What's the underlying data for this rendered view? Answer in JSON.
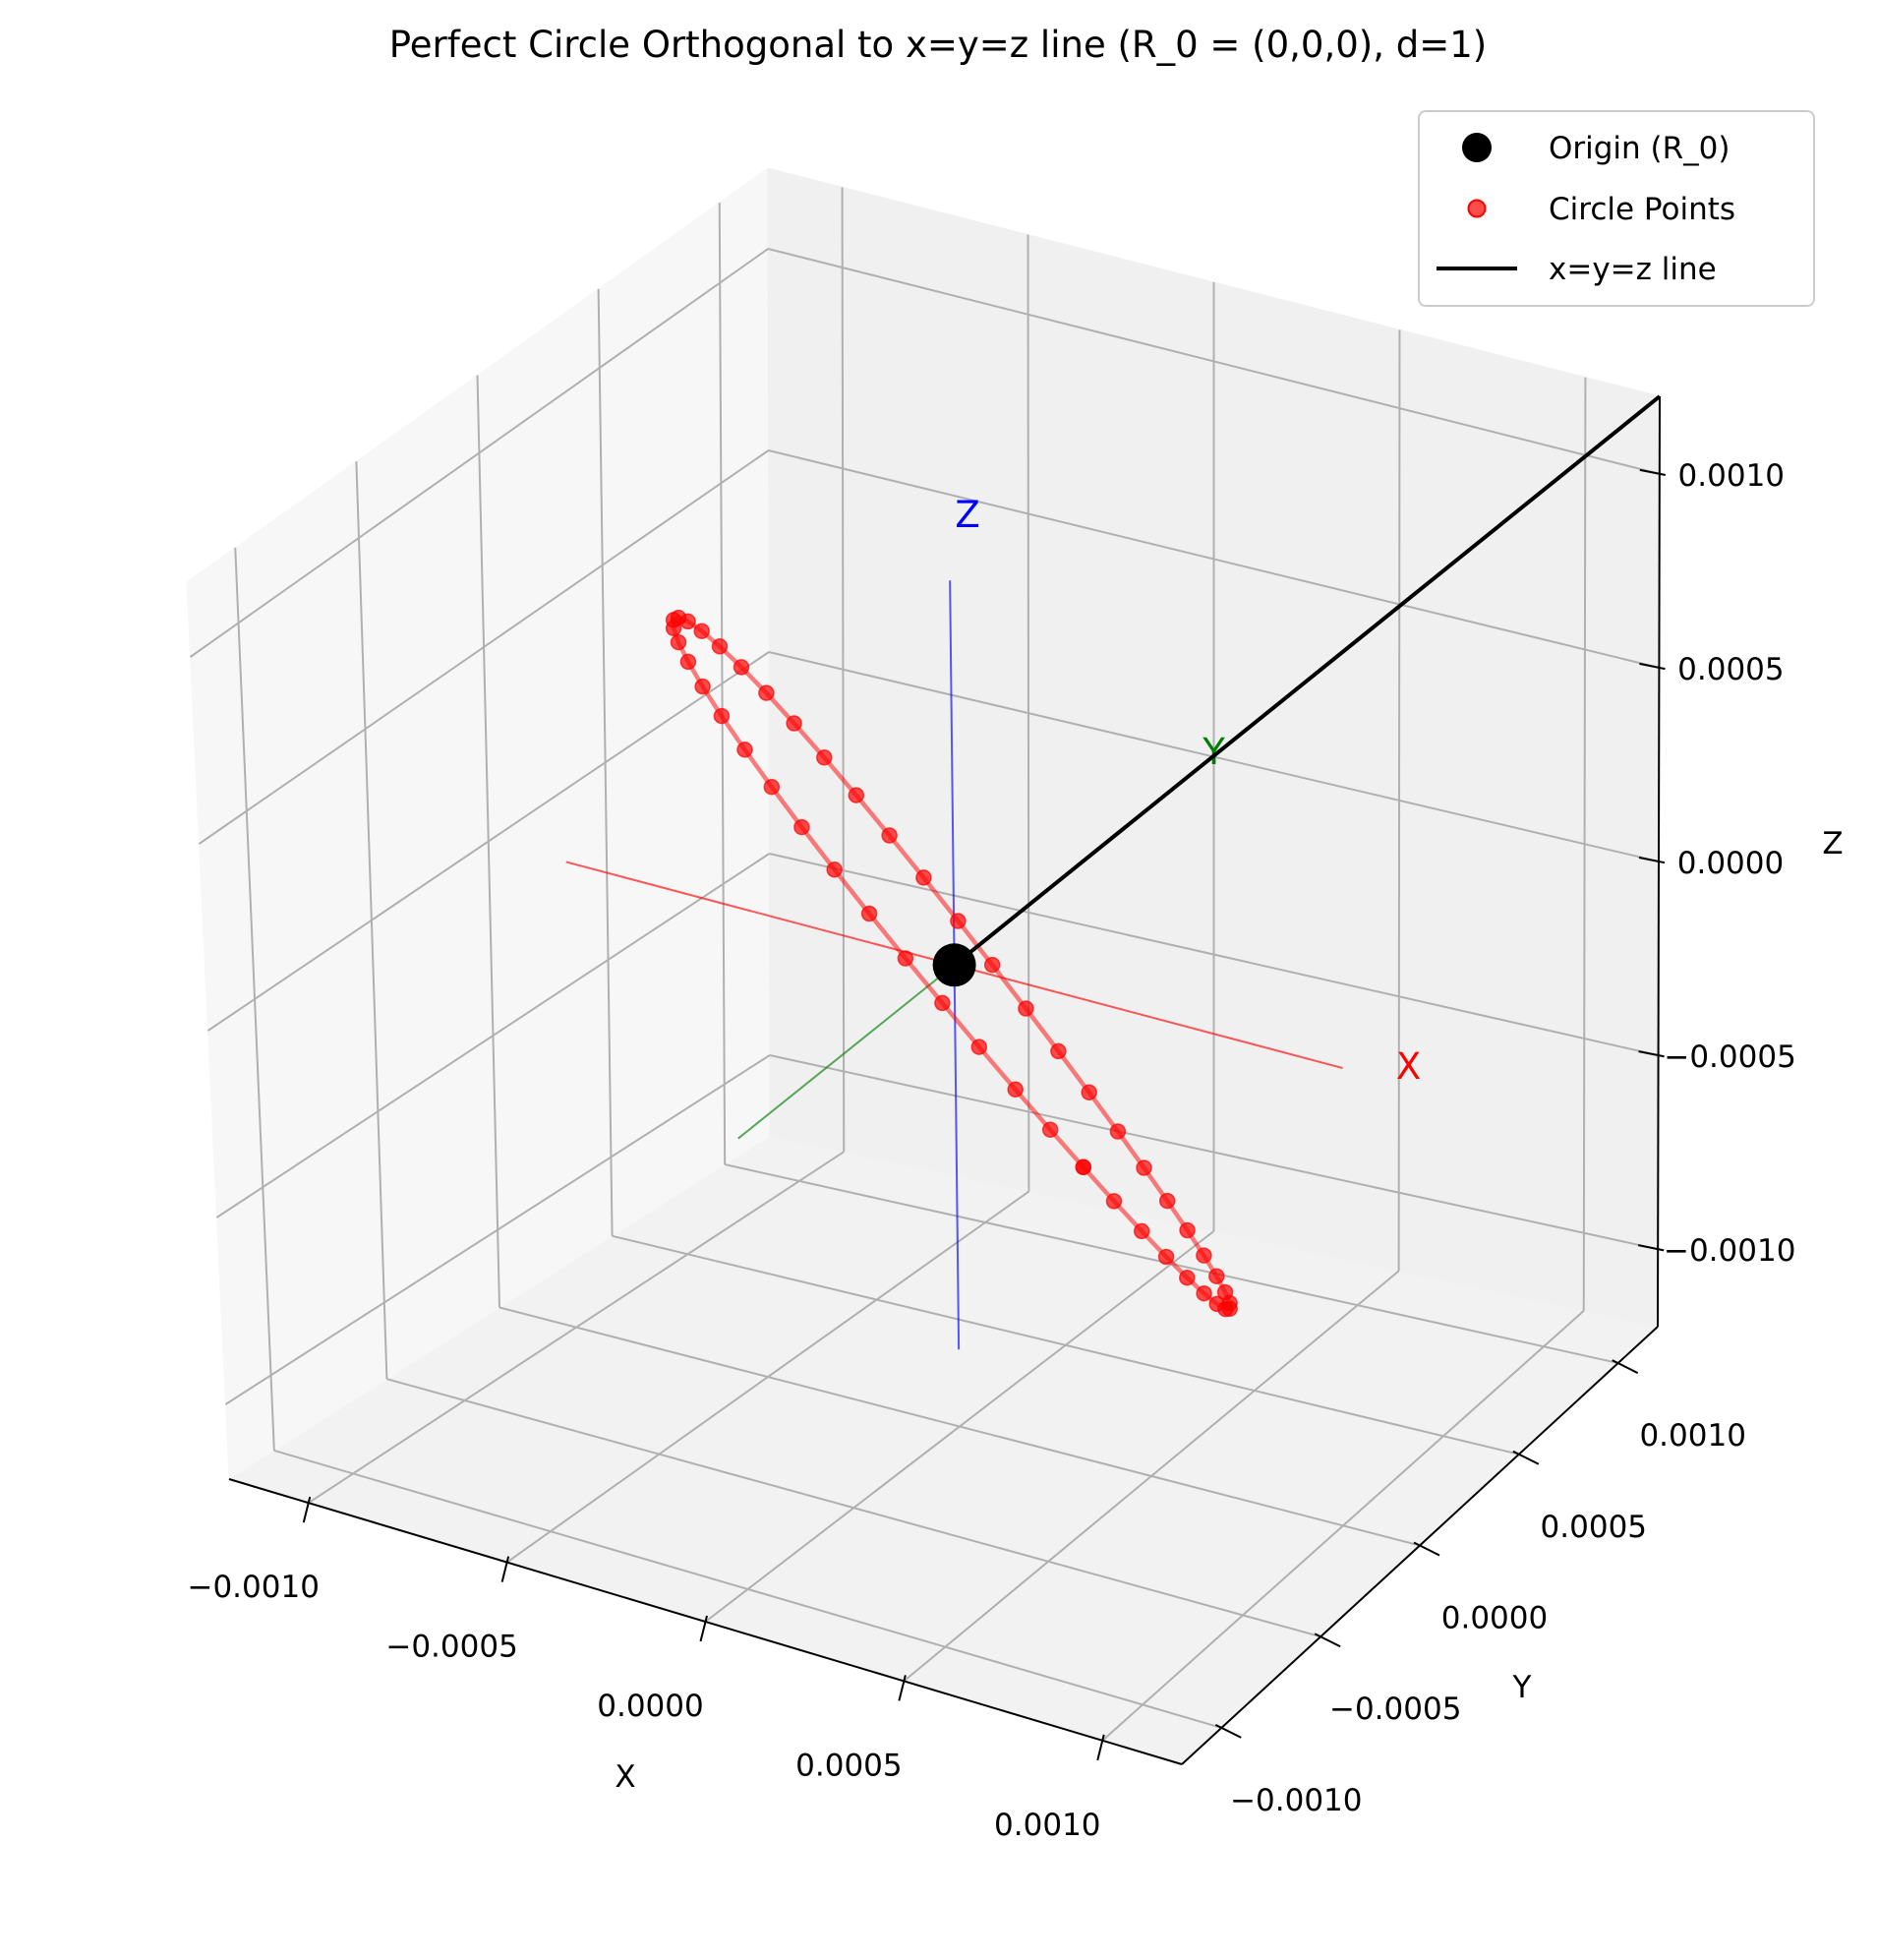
{
  "chart_data": {
    "type": "scatter3d",
    "title": "Perfect Circle Orthogonal to x=y=z line (R_0 = (0,0,0), d=1)",
    "xlabel": "X",
    "ylabel": "Y",
    "zlabel": "Z",
    "xlim": [
      -0.0012,
      0.0012
    ],
    "ylim": [
      -0.0012,
      0.0012
    ],
    "zlim": [
      -0.0012,
      0.0012
    ],
    "ticks": {
      "x": [
        "−0.0010",
        "−0.0005",
        "0.0000",
        "0.0005",
        "0.0010"
      ],
      "y": [
        "−0.0010",
        "−0.0005",
        "0.0000",
        "0.0005",
        "0.0010"
      ],
      "z": [
        "−0.0010",
        "−0.0005",
        "0.0000",
        "0.0005",
        "0.0010"
      ]
    },
    "tick_values": [
      -0.001,
      -0.0005,
      0,
      0.0005,
      0.001
    ],
    "grid": true,
    "legend_position": "top-right",
    "legend": [
      {
        "label": "Origin (R_0)",
        "marker": "big-dot",
        "color": "#000000"
      },
      {
        "label": "Circle Points",
        "marker": "dot",
        "color": "#ff0000"
      },
      {
        "label": "x=y=z line",
        "marker": "line",
        "color": "#000000"
      }
    ],
    "origin": {
      "x": 0,
      "y": 0,
      "z": 0
    },
    "circle": {
      "center": [
        0,
        0,
        0
      ],
      "radius": 0.001,
      "normal": [
        1,
        1,
        1
      ],
      "num_points": 50,
      "color": "#ff0000"
    },
    "diagonal_line": {
      "from": [
        0,
        0,
        0
      ],
      "to": [
        0.0012,
        0.0012,
        0.0012
      ],
      "color": "#000000"
    },
    "reference_axes": [
      {
        "label": "X",
        "from": [
          -0.001,
          0,
          0
        ],
        "to": [
          0.001,
          0,
          0
        ],
        "color": "#ff0000"
      },
      {
        "label": "Y",
        "from": [
          0,
          -0.001,
          0
        ],
        "to": [
          0,
          0.001,
          0
        ],
        "color": "#008000"
      },
      {
        "label": "Z",
        "from": [
          0,
          0,
          -0.001
        ],
        "to": [
          0,
          0,
          0.001
        ],
        "color": "#0000ff"
      }
    ]
  }
}
